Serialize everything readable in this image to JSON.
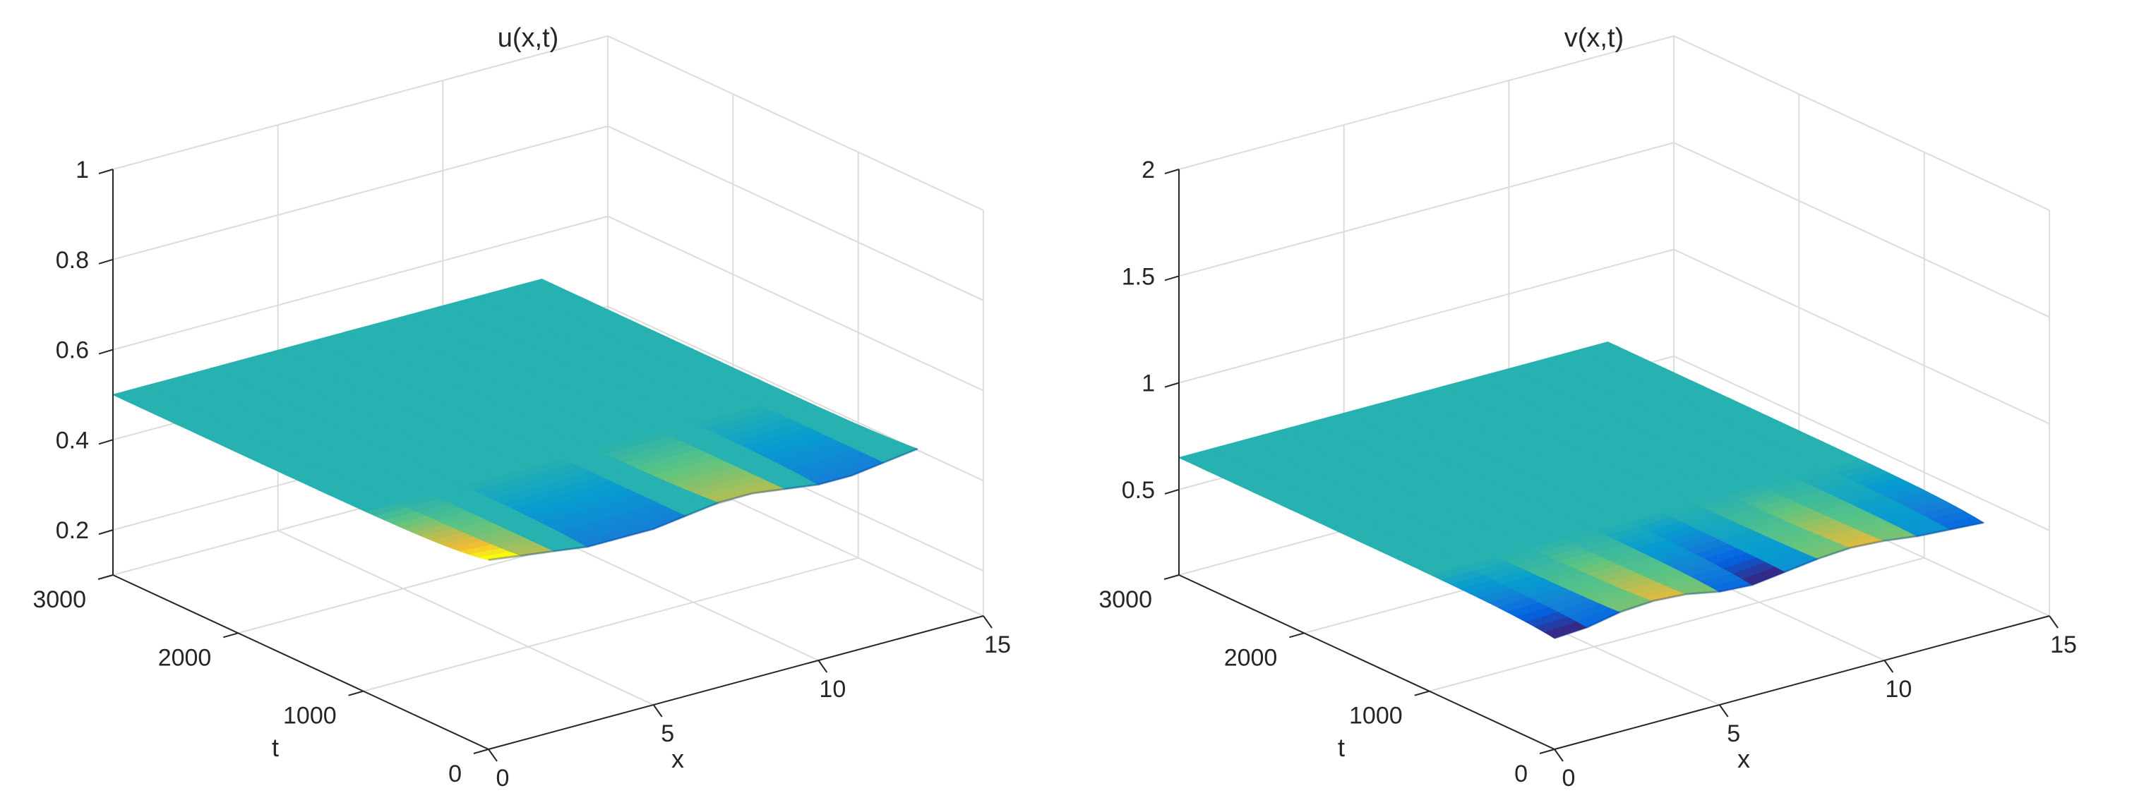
{
  "chart_data": [
    {
      "type": "surface",
      "title": "u(x,t)",
      "xlabel": "x",
      "ylabel": "t",
      "zlabel": "",
      "xlim": [
        0,
        15
      ],
      "ylim": [
        0,
        3000
      ],
      "zlim": [
        0.1,
        1
      ],
      "xticks": [
        0,
        5,
        10,
        15
      ],
      "yticks": [
        0,
        1000,
        2000,
        3000
      ],
      "zticks": [
        0.2,
        0.4,
        0.6,
        0.8,
        1
      ],
      "x_range": [
        0,
        13
      ],
      "t_range": [
        0,
        3000
      ],
      "equilibrium_value": 0.5,
      "early_time_profile": {
        "t": 0,
        "x": [
          0,
          1,
          2,
          3,
          4,
          5,
          6,
          7,
          8,
          9,
          10,
          11,
          12,
          13
        ],
        "values": [
          0.52,
          0.51,
          0.5,
          0.49,
          0.49,
          0.49,
          0.5,
          0.51,
          0.51,
          0.5,
          0.49,
          0.49,
          0.5,
          0.51
        ]
      },
      "grid": true,
      "colormap": "parula"
    },
    {
      "type": "surface",
      "title": "v(x,t)",
      "xlabel": "x",
      "ylabel": "t",
      "zlabel": "",
      "xlim": [
        0,
        15
      ],
      "ylim": [
        0,
        3000
      ],
      "zlim": [
        0.1,
        2
      ],
      "xticks": [
        0,
        5,
        10,
        15
      ],
      "yticks": [
        0,
        1000,
        2000,
        3000
      ],
      "zticks": [
        0.5,
        1,
        1.5,
        2
      ],
      "x_range": [
        0,
        13
      ],
      "t_range": [
        0,
        3000
      ],
      "equilibrium_value": 0.65,
      "early_time_profile": {
        "t": 0,
        "x": [
          0,
          1,
          2,
          3,
          4,
          5,
          6,
          7,
          8,
          9,
          10,
          11,
          12,
          13
        ],
        "values": [
          0.62,
          0.63,
          0.66,
          0.67,
          0.66,
          0.63,
          0.62,
          0.64,
          0.66,
          0.67,
          0.66,
          0.64,
          0.63,
          0.62
        ]
      },
      "grid": true,
      "colormap": "parula"
    }
  ]
}
